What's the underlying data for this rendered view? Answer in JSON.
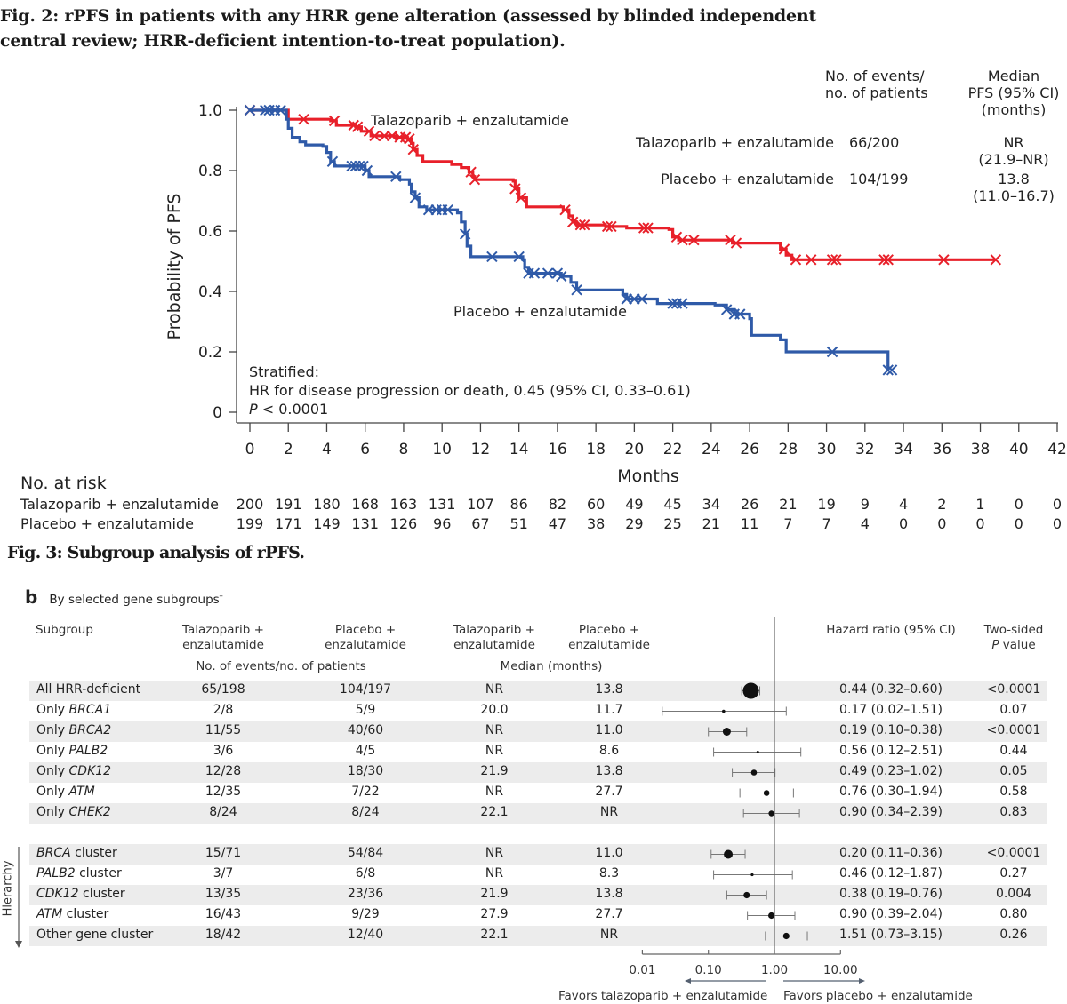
{
  "fig2": {
    "title_line1": "Fig. 2: rPFS in patients with any HRR gene alteration (assessed by blinded independent",
    "title_line2": "central review; HRR-deficient intention-to-treat population).",
    "summary_table": {
      "col_events_header_l1": "No. of events/",
      "col_events_header_l2": "no. of patients",
      "col_median_header_l1": "Median",
      "col_median_header_l2": "PFS (95% CI)",
      "col_median_header_l3": "(months)",
      "rows": [
        {
          "arm": "Talazoparib + enzalutamide",
          "events": "66/200",
          "median": "NR",
          "ci": "(21.9–NR)"
        },
        {
          "arm": "Placebo + enzalutamide",
          "events": "104/199",
          "median": "13.8",
          "ci": "(11.0–16.7)"
        }
      ]
    },
    "annotation": {
      "line1": "Stratified:",
      "line2": "HR for disease progression or death, 0.45 (95% CI, 0.33–0.61)",
      "p_label": "P",
      "p_value": " < 0.0001"
    },
    "curve_labels": {
      "talazoparib": "Talazoparib + enzalutamide",
      "placebo": "Placebo + enzalutamide"
    },
    "at_risk": {
      "title": "No. at risk",
      "rows": [
        {
          "arm": "Talazoparib + enzalutamide",
          "values": [
            "200",
            "191",
            "180",
            "168",
            "163",
            "131",
            "107",
            "86",
            "82",
            "60",
            "49",
            "45",
            "34",
            "26",
            "21",
            "19",
            "9",
            "4",
            "2",
            "1",
            "0",
            "0"
          ]
        },
        {
          "arm": "Placebo + enzalutamide",
          "values": [
            "199",
            "171",
            "149",
            "131",
            "126",
            "96",
            "67",
            "51",
            "47",
            "38",
            "29",
            "25",
            "21",
            "11",
            "7",
            "7",
            "4",
            "0",
            "0",
            "0",
            "0",
            "0"
          ]
        }
      ]
    }
  },
  "fig3": {
    "title": "Fig. 3: Subgroup analysis of rPFS.",
    "panel_letter": "b",
    "panel_title": "By selected gene subgroups",
    "panel_title_mark": "‡",
    "headers": {
      "subgroup": "Subgroup",
      "tal_l1": "Talazoparib +",
      "tal_l2": "enzalutamide",
      "pla_l1": "Placebo +",
      "pla_l2": "enzalutamide",
      "events_group": "No. of events/no. of patients",
      "median_group": "Median (months)",
      "hr": "Hazard ratio (95% CI)",
      "p_l1": "Two-sided",
      "p_l2_italic": "P",
      "p_l2_rest": " value"
    },
    "hierarchy_label": "Hierarchy",
    "axis_ticks": [
      "0.01",
      "0.10",
      "1.00",
      "10.00"
    ],
    "favors_left": "Favors talazoparib + enzalutamide",
    "favors_right": "Favors placebo + enzalutamide"
  },
  "chart_data": [
    {
      "type": "line",
      "subtype": "kaplan-meier",
      "title": "rPFS in patients with any HRR gene alteration",
      "xlabel": "Months",
      "ylabel": "Probability of PFS",
      "xlim": [
        0,
        42
      ],
      "ylim": [
        0,
        1.0
      ],
      "xticks": [
        "0",
        "2",
        "4",
        "6",
        "8",
        "10",
        "12",
        "14",
        "16",
        "18",
        "20",
        "22",
        "24",
        "26",
        "28",
        "30",
        "32",
        "34",
        "36",
        "38",
        "40",
        "42"
      ],
      "yticks": [
        "0",
        "0.2",
        "0.4",
        "0.6",
        "0.8",
        "1.0"
      ],
      "grid": false,
      "series": [
        {
          "name": "Talazoparib + enzalutamide",
          "color": "#e8202a",
          "steps": [
            [
              0,
              1.0
            ],
            [
              1.8,
              1.0
            ],
            [
              2.0,
              0.97
            ],
            [
              4.2,
              0.965
            ],
            [
              4.5,
              0.95
            ],
            [
              5.5,
              0.945
            ],
            [
              5.8,
              0.93
            ],
            [
              6.3,
              0.915
            ],
            [
              7.6,
              0.91
            ],
            [
              8.2,
              0.905
            ],
            [
              8.4,
              0.89
            ],
            [
              8.5,
              0.87
            ],
            [
              8.7,
              0.85
            ],
            [
              9.0,
              0.83
            ],
            [
              10.5,
              0.82
            ],
            [
              11.0,
              0.81
            ],
            [
              11.4,
              0.795
            ],
            [
              11.6,
              0.78
            ],
            [
              11.7,
              0.77
            ],
            [
              13.7,
              0.765
            ],
            [
              13.8,
              0.74
            ],
            [
              14.0,
              0.71
            ],
            [
              14.4,
              0.68
            ],
            [
              16.3,
              0.67
            ],
            [
              16.6,
              0.65
            ],
            [
              16.8,
              0.63
            ],
            [
              17.0,
              0.62
            ],
            [
              18.5,
              0.615
            ],
            [
              19.6,
              0.61
            ],
            [
              21.8,
              0.605
            ],
            [
              22.0,
              0.58
            ],
            [
              22.3,
              0.57
            ],
            [
              25.1,
              0.56
            ],
            [
              27.6,
              0.54
            ],
            [
              27.9,
              0.52
            ],
            [
              28.2,
              0.505
            ],
            [
              38.8,
              0.505
            ]
          ],
          "censored": [
            0,
            2.8,
            4.4,
            5.4,
            5.6,
            6.2,
            6.5,
            7.0,
            7.4,
            7.8,
            8.1,
            8.3,
            8.5,
            11.5,
            11.7,
            13.8,
            14.1,
            16.4,
            16.8,
            17.2,
            17.4,
            18.6,
            18.8,
            20.5,
            20.7,
            22.2,
            22.5,
            23.1,
            25.0,
            25.3,
            27.8,
            28.4,
            29.2,
            30.3,
            30.5,
            33.0,
            33.2,
            36.1,
            38.8
          ]
        },
        {
          "name": "Placebo + enzalutamide",
          "color": "#2f5aa8",
          "steps": [
            [
              0,
              1.0
            ],
            [
              1.8,
              1.0
            ],
            [
              1.9,
              0.97
            ],
            [
              2.0,
              0.94
            ],
            [
              2.2,
              0.91
            ],
            [
              2.6,
              0.895
            ],
            [
              2.9,
              0.885
            ],
            [
              3.8,
              0.88
            ],
            [
              4.0,
              0.86
            ],
            [
              4.2,
              0.83
            ],
            [
              4.4,
              0.815
            ],
            [
              6.0,
              0.8
            ],
            [
              6.2,
              0.78
            ],
            [
              7.8,
              0.77
            ],
            [
              8.3,
              0.755
            ],
            [
              8.4,
              0.73
            ],
            [
              8.6,
              0.71
            ],
            [
              8.8,
              0.68
            ],
            [
              9.2,
              0.67
            ],
            [
              10.8,
              0.66
            ],
            [
              11.0,
              0.63
            ],
            [
              11.2,
              0.59
            ],
            [
              11.3,
              0.55
            ],
            [
              11.5,
              0.515
            ],
            [
              14.2,
              0.505
            ],
            [
              14.3,
              0.48
            ],
            [
              14.5,
              0.46
            ],
            [
              16.2,
              0.45
            ],
            [
              16.7,
              0.43
            ],
            [
              17.0,
              0.405
            ],
            [
              19.4,
              0.39
            ],
            [
              19.6,
              0.375
            ],
            [
              21.2,
              0.36
            ],
            [
              24.2,
              0.355
            ],
            [
              24.8,
              0.34
            ],
            [
              25.2,
              0.325
            ],
            [
              26.0,
              0.31
            ],
            [
              26.1,
              0.255
            ],
            [
              27.6,
              0.24
            ],
            [
              27.9,
              0.2
            ],
            [
              33.2,
              0.2
            ],
            [
              33.2,
              0.14
            ]
          ],
          "censored": [
            0,
            0.8,
            1.0,
            1.3,
            1.6,
            4.3,
            5.3,
            5.5,
            5.7,
            5.9,
            6.1,
            7.6,
            8.6,
            9.3,
            9.7,
            10.0,
            10.3,
            11.2,
            12.6,
            14.0,
            14.5,
            14.8,
            15.5,
            16.0,
            16.2,
            17.0,
            19.6,
            20.0,
            20.4,
            22.0,
            22.2,
            22.5,
            24.8,
            25.2,
            25.5,
            30.3,
            33.2,
            33.4
          ]
        }
      ],
      "summary": [
        {
          "arm": "Talazoparib + enzalutamide",
          "events_patients": "66/200",
          "median_pfs_months": "NR",
          "ci": "21.9–NR"
        },
        {
          "arm": "Placebo + enzalutamide",
          "events_patients": "104/199",
          "median_pfs_months": "13.8",
          "ci": "11.0–16.7"
        }
      ],
      "hazard_ratio": 0.45,
      "hr_ci": [
        0.33,
        0.61
      ],
      "p_value": "<0.0001"
    },
    {
      "type": "forest",
      "title": "Subgroup analysis of rPFS — by selected gene subgroups",
      "xscale": "log",
      "xlim": [
        0.01,
        10
      ],
      "xticks": [
        "0.01",
        "0.10",
        "1.00",
        "10.00"
      ],
      "reference_line": 1.0,
      "rows": [
        {
          "subgroup": "All HRR-deficient",
          "prefix": "",
          "gene": "",
          "suffix": "All HRR-deficient",
          "tal": "65/198",
          "pla": "104/197",
          "tal_median": "NR",
          "pla_median": "13.8",
          "hr": 0.44,
          "lo": 0.32,
          "hi": 0.6,
          "hr_text": "0.44 (0.32–0.60)",
          "p": "<0.0001",
          "size": 9,
          "group": 1
        },
        {
          "subgroup": "Only BRCA1",
          "prefix": "Only ",
          "gene": "BRCA1",
          "suffix": "",
          "tal": "2/8",
          "pla": "5/9",
          "tal_median": "20.0",
          "pla_median": "11.7",
          "hr": 0.17,
          "lo": 0.02,
          "hi": 1.51,
          "hr_text": "0.17 (0.02–1.51)",
          "p": "0.07",
          "size": 1.8,
          "group": 1
        },
        {
          "subgroup": "Only BRCA2",
          "prefix": "Only ",
          "gene": "BRCA2",
          "suffix": "",
          "tal": "11/55",
          "pla": "40/60",
          "tal_median": "NR",
          "pla_median": "11.0",
          "hr": 0.19,
          "lo": 0.1,
          "hi": 0.38,
          "hr_text": "0.19 (0.10–0.38)",
          "p": "<0.0001",
          "size": 4.5,
          "group": 1
        },
        {
          "subgroup": "Only PALB2",
          "prefix": "Only ",
          "gene": "PALB2",
          "suffix": "",
          "tal": "3/6",
          "pla": "4/5",
          "tal_median": "NR",
          "pla_median": "8.6",
          "hr": 0.56,
          "lo": 0.12,
          "hi": 2.51,
          "hr_text": "0.56 (0.12–2.51)",
          "p": "0.44",
          "size": 1.5,
          "group": 1
        },
        {
          "subgroup": "Only CDK12",
          "prefix": "Only ",
          "gene": "CDK12",
          "suffix": "",
          "tal": "12/28",
          "pla": "18/30",
          "tal_median": "21.9",
          "pla_median": "13.8",
          "hr": 0.49,
          "lo": 0.23,
          "hi": 1.02,
          "hr_text": "0.49 (0.23–1.02)",
          "p": "0.05",
          "size": 3.3,
          "group": 1
        },
        {
          "subgroup": "Only ATM",
          "prefix": "Only ",
          "gene": "ATM",
          "suffix": "",
          "tal": "12/35",
          "pla": "7/22",
          "tal_median": "NR",
          "pla_median": "27.7",
          "hr": 0.76,
          "lo": 0.3,
          "hi": 1.94,
          "hr_text": "0.76 (0.30–1.94)",
          "p": "0.58",
          "size": 3.3,
          "group": 1
        },
        {
          "subgroup": "Only CHEK2",
          "prefix": "Only ",
          "gene": "CHEK2",
          "suffix": "",
          "tal": "8/24",
          "pla": "8/24",
          "tal_median": "22.1",
          "pla_median": "NR",
          "hr": 0.9,
          "lo": 0.34,
          "hi": 2.39,
          "hr_text": "0.90 (0.34–2.39)",
          "p": "0.83",
          "size": 3.2,
          "group": 1
        },
        {
          "subgroup": "BRCA cluster",
          "prefix": "",
          "gene": "BRCA",
          "suffix": " cluster",
          "tal": "15/71",
          "pla": "54/84",
          "tal_median": "NR",
          "pla_median": "11.0",
          "hr": 0.2,
          "lo": 0.11,
          "hi": 0.36,
          "hr_text": "0.20 (0.11–0.36)",
          "p": "<0.0001",
          "size": 5,
          "group": 2
        },
        {
          "subgroup": "PALB2 cluster",
          "prefix": "",
          "gene": "PALB2",
          "suffix": " cluster",
          "tal": "3/7",
          "pla": "6/8",
          "tal_median": "NR",
          "pla_median": "8.3",
          "hr": 0.46,
          "lo": 0.12,
          "hi": 1.87,
          "hr_text": "0.46 (0.12–1.87)",
          "p": "0.27",
          "size": 1.6,
          "group": 2
        },
        {
          "subgroup": "CDK12 cluster",
          "prefix": "",
          "gene": "CDK12",
          "suffix": " cluster",
          "tal": "13/35",
          "pla": "23/36",
          "tal_median": "21.9",
          "pla_median": "13.8",
          "hr": 0.38,
          "lo": 0.19,
          "hi": 0.76,
          "hr_text": "0.38 (0.19–0.76)",
          "p": "0.004",
          "size": 3.6,
          "group": 2
        },
        {
          "subgroup": "ATM cluster",
          "prefix": "",
          "gene": "ATM",
          "suffix": " cluster",
          "tal": "16/43",
          "pla": "9/29",
          "tal_median": "27.9",
          "pla_median": "27.7",
          "hr": 0.9,
          "lo": 0.39,
          "hi": 2.04,
          "hr_text": "0.90 (0.39–2.04)",
          "p": "0.80",
          "size": 3.6,
          "group": 2
        },
        {
          "subgroup": "Other gene cluster",
          "prefix": "",
          "gene": "",
          "suffix": "Other gene cluster",
          "tal": "18/42",
          "pla": "12/40",
          "tal_median": "22.1",
          "pla_median": "NR",
          "hr": 1.51,
          "lo": 0.73,
          "hi": 3.15,
          "hr_text": "1.51 (0.73–3.15)",
          "p": "0.26",
          "size": 3.6,
          "group": 2
        }
      ]
    }
  ]
}
